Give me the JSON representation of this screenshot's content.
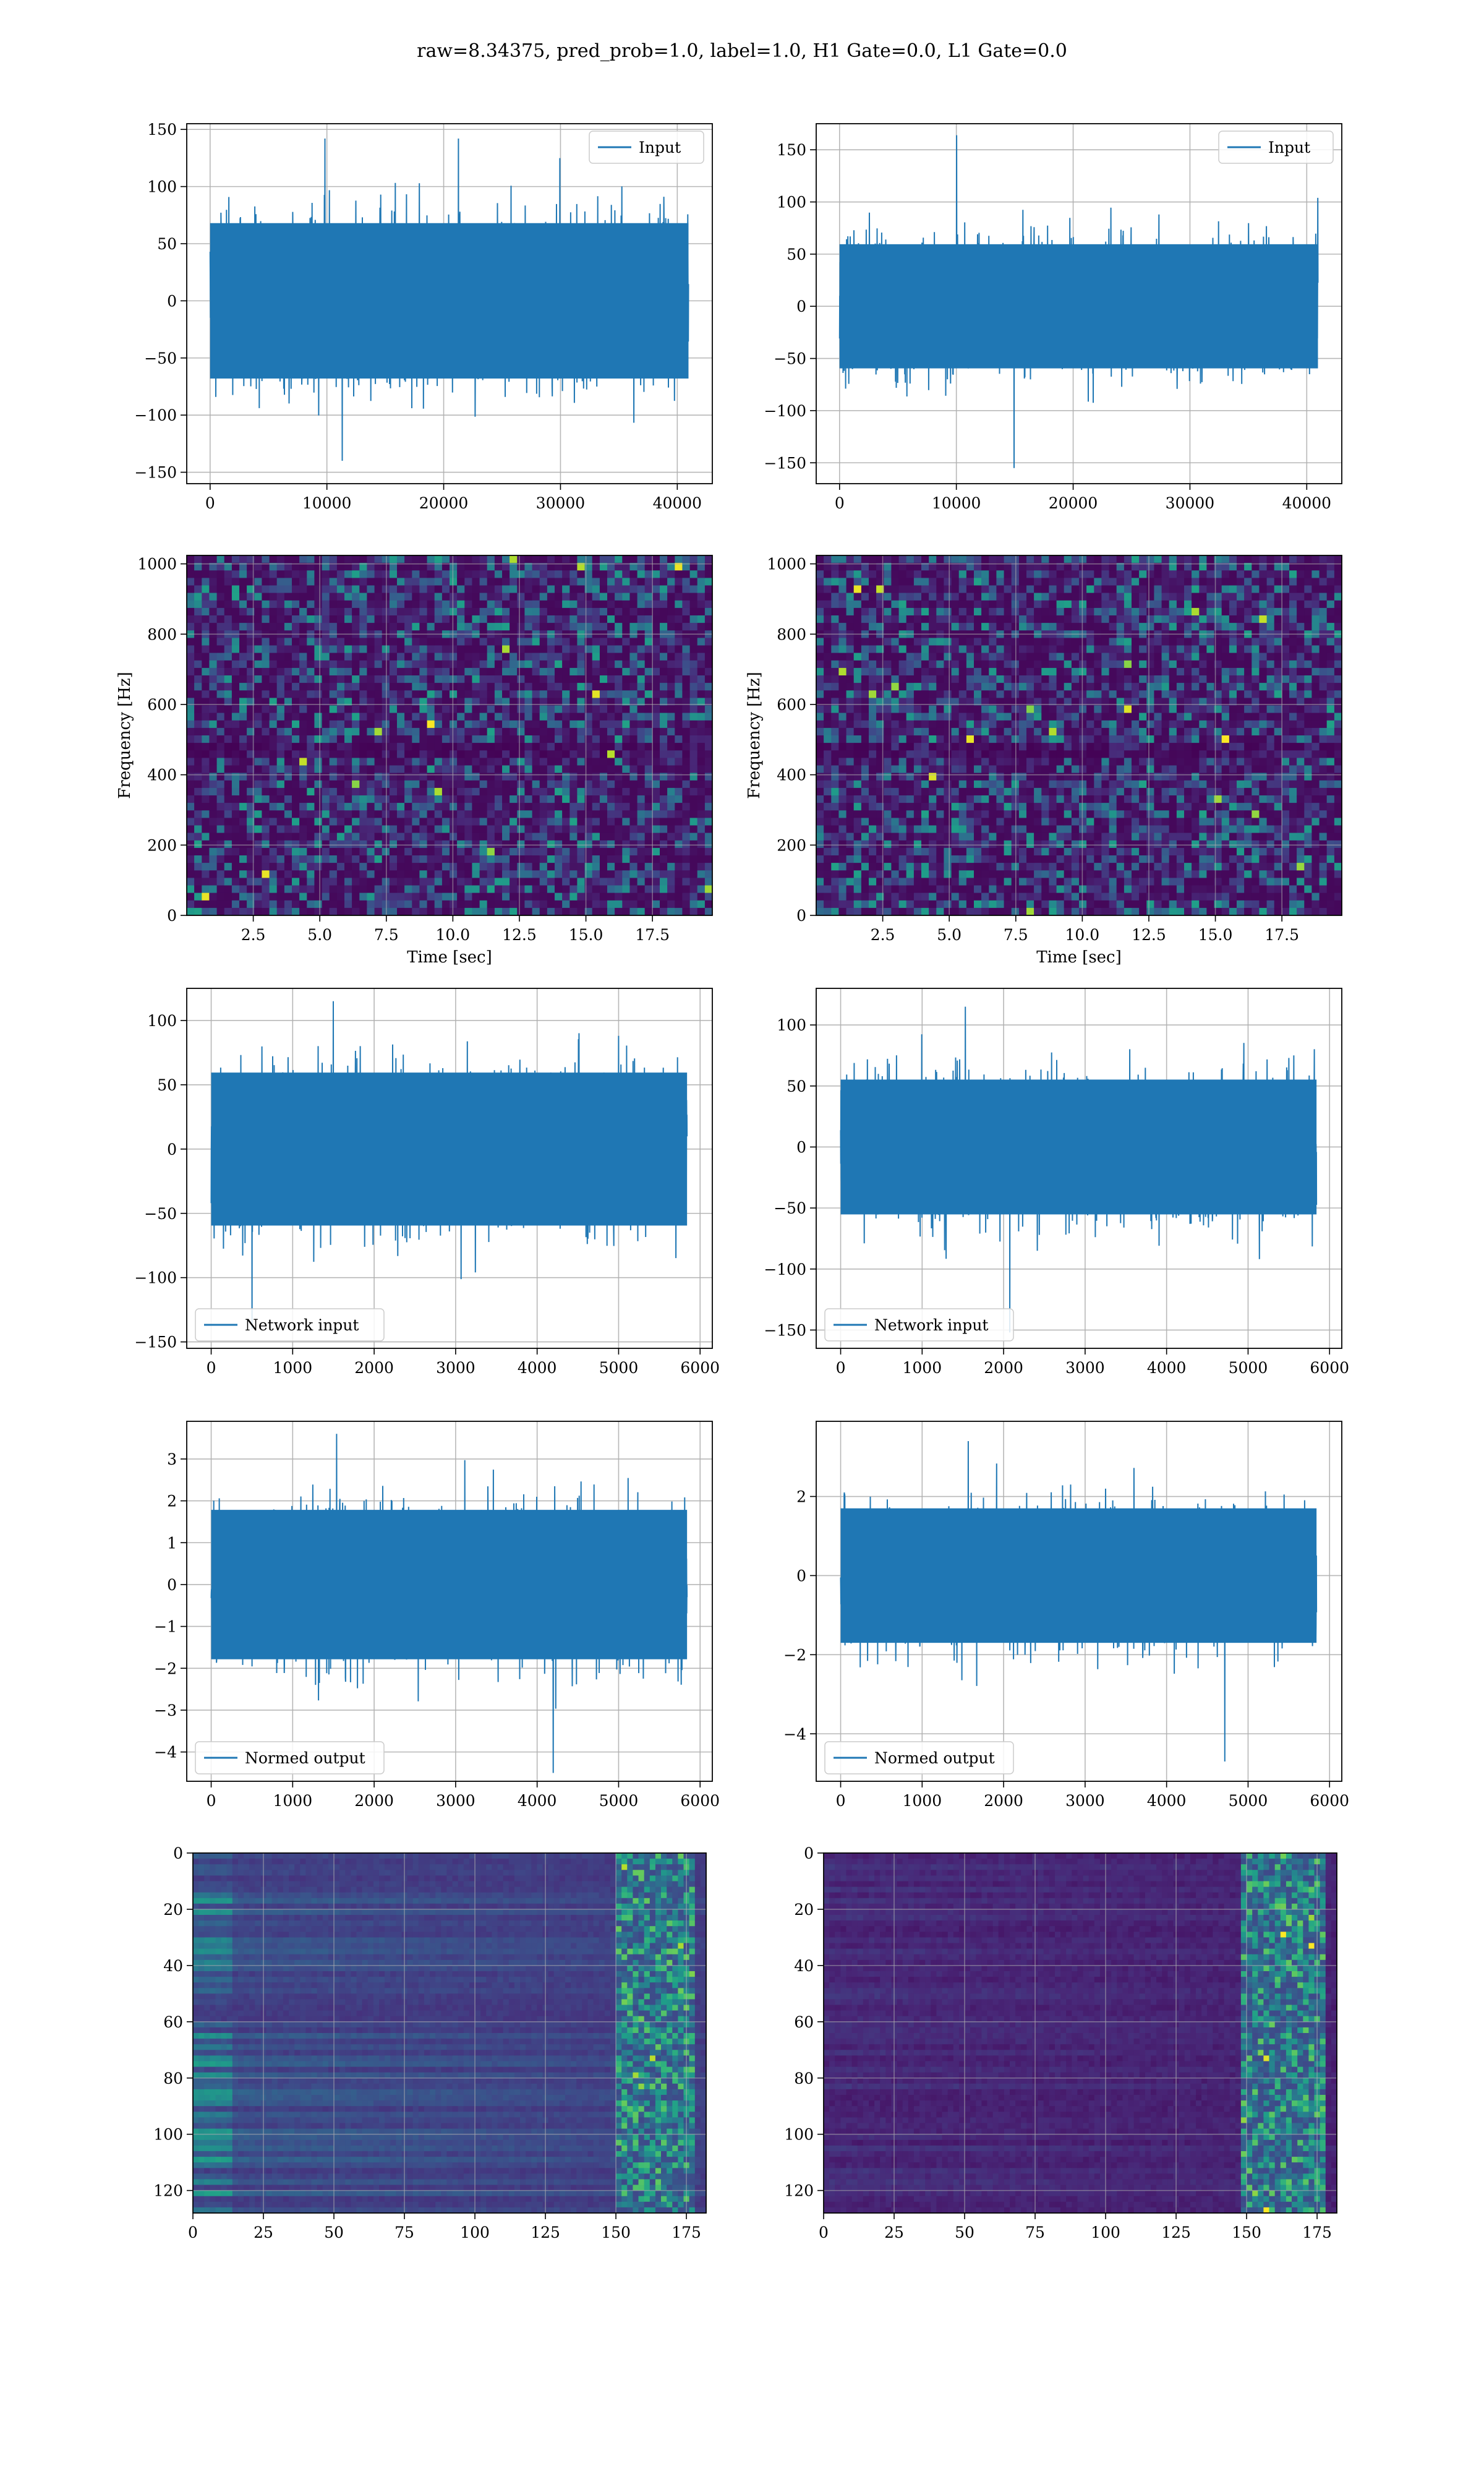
{
  "figure": {
    "suptitle": "raw=8.34375, pred_prob=1.0, label=1.0, H1 Gate=0.0, L1 Gate=0.0"
  },
  "colors": {
    "line": "#1f77b4",
    "grid": "#b0b0b0",
    "viridis_low": "#440154",
    "viridis_high": "#fde725"
  },
  "chart_data": [
    {
      "type": "line",
      "panel": "row1-left",
      "legend": "Input",
      "legend_loc": "upper right",
      "xlim": [
        -2000,
        43000
      ],
      "ylim": [
        -160,
        155
      ],
      "xticks": [
        0,
        10000,
        20000,
        30000,
        40000
      ],
      "yticks": [
        -150,
        -100,
        -50,
        0,
        50,
        100,
        150
      ],
      "x_range": [
        0,
        40960
      ],
      "envelope_abs": 80,
      "peak_max": 142,
      "peak_min": -140,
      "seed": 11,
      "xlabel": "",
      "ylabel": ""
    },
    {
      "type": "line",
      "panel": "row1-right",
      "legend": "Input",
      "legend_loc": "upper right",
      "xlim": [
        -2000,
        43000
      ],
      "ylim": [
        -170,
        175
      ],
      "xticks": [
        0,
        10000,
        20000,
        30000,
        40000
      ],
      "yticks": [
        -150,
        -100,
        -50,
        0,
        50,
        100,
        150
      ],
      "x_range": [
        0,
        40960
      ],
      "envelope_abs": 70,
      "peak_max": 164,
      "peak_min": -155,
      "seed": 23,
      "xlabel": "",
      "ylabel": ""
    },
    {
      "type": "heatmap",
      "panel": "row2-left",
      "colormap": "viridis",
      "xlim": [
        0,
        19.75
      ],
      "ylim": [
        0,
        1024
      ],
      "xticks": [
        2.5,
        5.0,
        7.5,
        10.0,
        12.5,
        15.0,
        17.5
      ],
      "yticks": [
        0,
        200,
        400,
        600,
        800,
        1000
      ],
      "xtick_labels": [
        "2.5",
        "5.0",
        "7.5",
        "10.0",
        "12.5",
        "15.0",
        "17.5"
      ],
      "xlabel": "Time [sec]",
      "ylabel": "Frequency [Hz]",
      "seed": 31
    },
    {
      "type": "heatmap",
      "panel": "row2-right",
      "colormap": "viridis",
      "xlim": [
        0,
        19.75
      ],
      "ylim": [
        0,
        1024
      ],
      "xticks": [
        2.5,
        5.0,
        7.5,
        10.0,
        12.5,
        15.0,
        17.5
      ],
      "yticks": [
        0,
        200,
        400,
        600,
        800,
        1000
      ],
      "xtick_labels": [
        "2.5",
        "5.0",
        "7.5",
        "10.0",
        "12.5",
        "15.0",
        "17.5"
      ],
      "xlabel": "Time [sec]",
      "ylabel": "Frequency [Hz]",
      "seed": 47
    },
    {
      "type": "line",
      "panel": "row3-left",
      "legend": "Network input",
      "legend_loc": "lower left",
      "xlim": [
        -300,
        6150
      ],
      "ylim": [
        -155,
        125
      ],
      "xticks": [
        0,
        1000,
        2000,
        3000,
        4000,
        5000,
        6000
      ],
      "yticks": [
        -150,
        -100,
        -50,
        0,
        50,
        100
      ],
      "x_range": [
        0,
        5840
      ],
      "envelope_abs": 70,
      "peak_max": 115,
      "peak_min": -140,
      "seed": 53,
      "xlabel": "",
      "ylabel": ""
    },
    {
      "type": "line",
      "panel": "row3-right",
      "legend": "Network input",
      "legend_loc": "lower left",
      "xlim": [
        -300,
        6150
      ],
      "ylim": [
        -165,
        130
      ],
      "xticks": [
        0,
        1000,
        2000,
        3000,
        4000,
        5000,
        6000
      ],
      "yticks": [
        -150,
        -100,
        -50,
        0,
        50,
        100
      ],
      "x_range": [
        0,
        5840
      ],
      "envelope_abs": 65,
      "peak_max": 115,
      "peak_min": -152,
      "seed": 67,
      "xlabel": "",
      "ylabel": ""
    },
    {
      "type": "line",
      "panel": "row4-left",
      "legend": "Normed output",
      "legend_loc": "lower left",
      "xlim": [
        -300,
        6150
      ],
      "ylim": [
        -4.7,
        3.9
      ],
      "xticks": [
        0,
        1000,
        2000,
        3000,
        4000,
        5000,
        6000
      ],
      "yticks": [
        -4,
        -3,
        -2,
        -1,
        0,
        1,
        2,
        3
      ],
      "x_range": [
        0,
        5840
      ],
      "envelope_abs": 2.1,
      "peak_max": 3.6,
      "peak_min": -4.5,
      "seed": 71,
      "xlabel": "",
      "ylabel": ""
    },
    {
      "type": "line",
      "panel": "row4-right",
      "legend": "Normed output",
      "legend_loc": "lower left",
      "xlim": [
        -300,
        6150
      ],
      "ylim": [
        -5.2,
        3.9
      ],
      "xticks": [
        0,
        1000,
        2000,
        3000,
        4000,
        5000,
        6000
      ],
      "yticks": [
        -4,
        -2,
        0,
        2
      ],
      "x_range": [
        0,
        5840
      ],
      "envelope_abs": 2.0,
      "peak_max": 3.4,
      "peak_min": -4.7,
      "seed": 83,
      "xlabel": "",
      "ylabel": ""
    },
    {
      "type": "heatmap",
      "panel": "row5-left",
      "colormap": "viridis",
      "xlim": [
        0,
        182
      ],
      "ylim": [
        128,
        0
      ],
      "xticks": [
        0,
        25,
        50,
        75,
        100,
        125,
        150,
        175
      ],
      "yticks": [
        0,
        20,
        40,
        60,
        80,
        100,
        120
      ],
      "bright_band_x": [
        150,
        178
      ],
      "background_level": "medium",
      "seed": 97,
      "xlabel": "",
      "ylabel": ""
    },
    {
      "type": "heatmap",
      "panel": "row5-right",
      "colormap": "viridis",
      "xlim": [
        0,
        182
      ],
      "ylim": [
        128,
        0
      ],
      "xticks": [
        0,
        25,
        50,
        75,
        100,
        125,
        150,
        175
      ],
      "yticks": [
        0,
        20,
        40,
        60,
        80,
        100,
        120
      ],
      "bright_band_x": [
        148,
        178
      ],
      "background_level": "low",
      "seed": 101,
      "xlabel": "",
      "ylabel": ""
    }
  ]
}
